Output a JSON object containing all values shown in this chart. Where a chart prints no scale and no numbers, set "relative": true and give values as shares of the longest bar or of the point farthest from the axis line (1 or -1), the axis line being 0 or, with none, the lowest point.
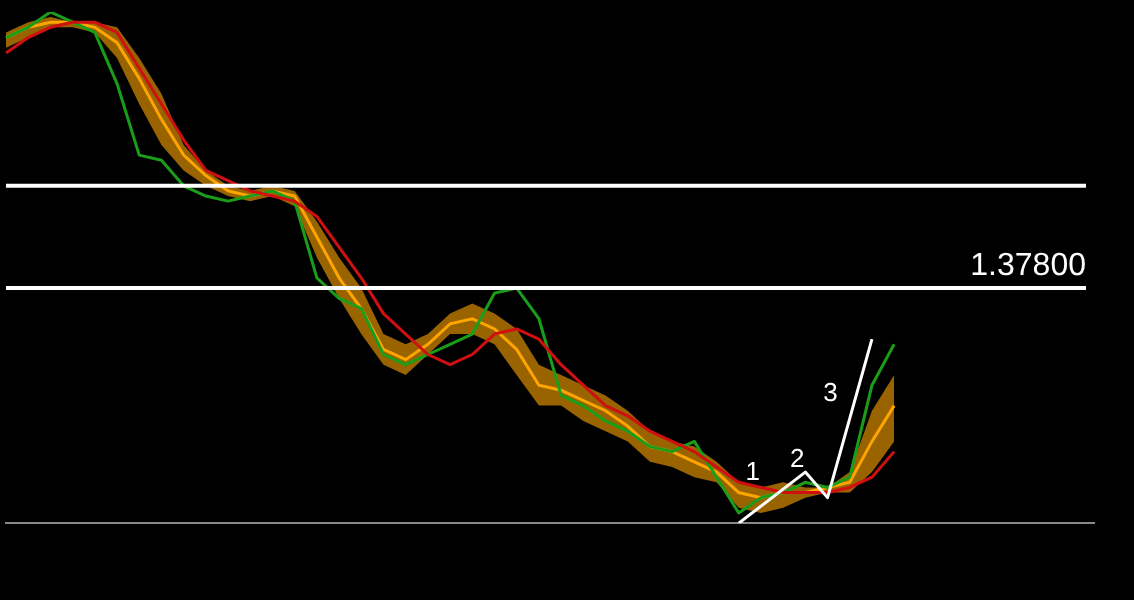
{
  "chart_data": {
    "type": "line",
    "relative": true,
    "categories": [
      null,
      null,
      null,
      null,
      null,
      null,
      null,
      null,
      null,
      null,
      null,
      null,
      null,
      null,
      null,
      null,
      null,
      null,
      null,
      null,
      null,
      null,
      null,
      null,
      null,
      null,
      null,
      null,
      null,
      null,
      null,
      null,
      null,
      null,
      null,
      null,
      null,
      null,
      null,
      null,
      null,
      null,
      null,
      null,
      null,
      null,
      null,
      null,
      null,
      null
    ],
    "series": [
      {
        "color": "#ffa500",
        "values": [
          0.95,
          0.97,
          0.98,
          0.98,
          0.97,
          0.94,
          0.87,
          0.79,
          0.72,
          0.68,
          0.65,
          0.64,
          0.65,
          0.64,
          0.56,
          0.48,
          0.42,
          0.34,
          0.32,
          0.35,
          0.39,
          0.4,
          0.38,
          0.34,
          0.27,
          0.26,
          0.24,
          0.22,
          0.19,
          0.15,
          0.14,
          0.12,
          0.1,
          0.06,
          0.05,
          0.06,
          0.06,
          0.07,
          0.08,
          0.16,
          0.23,
          null,
          null,
          null,
          null,
          null,
          null,
          null,
          null,
          null
        ],
        "upper": [
          0.96,
          0.98,
          0.99,
          0.98,
          0.98,
          0.97,
          0.91,
          0.84,
          0.74,
          0.69,
          0.66,
          0.65,
          0.66,
          0.65,
          0.59,
          0.52,
          0.46,
          0.37,
          0.35,
          0.37,
          0.41,
          0.43,
          0.41,
          0.38,
          0.31,
          0.29,
          0.27,
          0.25,
          0.22,
          0.18,
          0.16,
          0.15,
          0.12,
          0.08,
          0.07,
          0.08,
          0.07,
          0.07,
          0.1,
          0.22,
          0.29,
          null,
          null,
          null,
          null,
          null,
          null,
          null,
          null,
          null
        ],
        "lower": [
          0.93,
          0.95,
          0.97,
          0.97,
          0.96,
          0.91,
          0.82,
          0.74,
          0.69,
          0.66,
          0.64,
          0.63,
          0.64,
          0.62,
          0.52,
          0.44,
          0.37,
          0.31,
          0.29,
          0.33,
          0.37,
          0.37,
          0.35,
          0.29,
          0.23,
          0.23,
          0.2,
          0.18,
          0.16,
          0.12,
          0.11,
          0.09,
          0.08,
          0.03,
          0.02,
          0.03,
          0.05,
          0.06,
          0.06,
          0.1,
          0.16,
          null,
          null,
          null,
          null,
          null,
          null,
          null,
          null,
          null
        ]
      },
      {
        "color": "#1a9e1a",
        "values": [
          0.95,
          0.97,
          1,
          0.98,
          0.96,
          0.86,
          0.72,
          0.71,
          0.66,
          0.64,
          0.63,
          0.64,
          0.65,
          0.63,
          0.48,
          0.44,
          0.42,
          0.33,
          0.31,
          0.33,
          0.35,
          0.37,
          0.45,
          0.46,
          0.4,
          0.25,
          0.23,
          0.2,
          0.18,
          0.15,
          0.14,
          0.16,
          0.09,
          0.02,
          0.05,
          0.06,
          0.08,
          0.07,
          0.09,
          0.27,
          0.35,
          null,
          null,
          null,
          null,
          null,
          null,
          null,
          null,
          null
        ]
      },
      {
        "color": "#d01010",
        "values": [
          0.92,
          0.95,
          0.97,
          0.98,
          0.98,
          0.96,
          0.89,
          0.82,
          0.75,
          0.69,
          0.67,
          0.65,
          0.64,
          0.63,
          0.6,
          0.54,
          0.48,
          0.41,
          0.37,
          0.33,
          0.31,
          0.33,
          0.37,
          0.38,
          0.36,
          0.31,
          0.27,
          0.23,
          0.21,
          0.18,
          0.16,
          0.14,
          0.11,
          0.08,
          0.07,
          0.06,
          0.06,
          0.06,
          0.07,
          0.09,
          0.14,
          null,
          null,
          null,
          null,
          null,
          null,
          null,
          null,
          null
        ]
      },
      {
        "color": "#ffffff",
        "values": [
          null,
          null,
          null,
          null,
          null,
          null,
          null,
          null,
          null,
          null,
          null,
          null,
          null,
          null,
          null,
          null,
          null,
          null,
          null,
          null,
          null,
          null,
          null,
          null,
          null,
          null,
          null,
          null,
          null,
          null,
          null,
          null,
          null,
          0,
          null,
          null,
          0.1,
          0.05,
          null,
          0.36,
          null,
          null,
          null,
          null,
          null,
          null,
          null,
          null,
          null,
          null
        ]
      }
    ],
    "ref_lines": [
      {
        "axis": "y",
        "value": 0.66,
        "color": "#ffffff"
      },
      {
        "axis": "y",
        "value": 0.46,
        "color": "#ffffff"
      }
    ],
    "annotations": [
      "1.37800",
      "1",
      "2",
      "3"
    ],
    "grid": false,
    "legend": false,
    "marker": "none",
    "line_style": "solid"
  }
}
